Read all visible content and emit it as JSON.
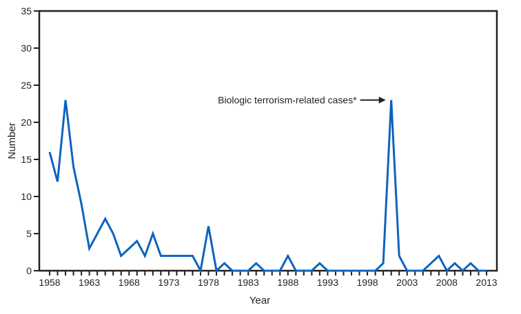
{
  "chart_data": {
    "type": "line",
    "title": "",
    "xlabel": "Year",
    "ylabel": "Number",
    "xlim": [
      1958,
      2013
    ],
    "ylim": [
      0,
      35
    ],
    "yticks": [
      0,
      5,
      10,
      15,
      20,
      25,
      30,
      35
    ],
    "xticks": [
      1958,
      1963,
      1968,
      1973,
      1978,
      1983,
      1988,
      1993,
      1998,
      2003,
      2008,
      2013
    ],
    "grid": false,
    "line_color": "#0b63be",
    "x": [
      1958,
      1959,
      1960,
      1961,
      1962,
      1963,
      1964,
      1965,
      1966,
      1967,
      1968,
      1969,
      1970,
      1971,
      1972,
      1973,
      1974,
      1975,
      1976,
      1977,
      1978,
      1979,
      1980,
      1981,
      1982,
      1983,
      1984,
      1985,
      1986,
      1987,
      1988,
      1989,
      1990,
      1991,
      1992,
      1993,
      1994,
      1995,
      1996,
      1997,
      1998,
      1999,
      2000,
      2001,
      2002,
      2003,
      2004,
      2005,
      2006,
      2007,
      2008,
      2009,
      2010,
      2011,
      2012,
      2013
    ],
    "values": [
      16,
      12,
      23,
      14,
      9,
      3,
      5,
      7,
      5,
      2,
      3,
      4,
      2,
      5,
      2,
      2,
      2,
      2,
      2,
      0,
      6,
      0,
      1,
      0,
      0,
      0,
      1,
      0,
      0,
      0,
      2,
      0,
      0,
      0,
      1,
      0,
      0,
      0,
      0,
      0,
      0,
      0,
      1,
      23,
      2,
      0,
      0,
      0,
      1,
      2,
      0,
      1,
      0,
      1,
      0,
      0
    ],
    "annotation": {
      "text": "Biologic terrorism-related cases*",
      "x": 2001,
      "y": 23
    }
  }
}
